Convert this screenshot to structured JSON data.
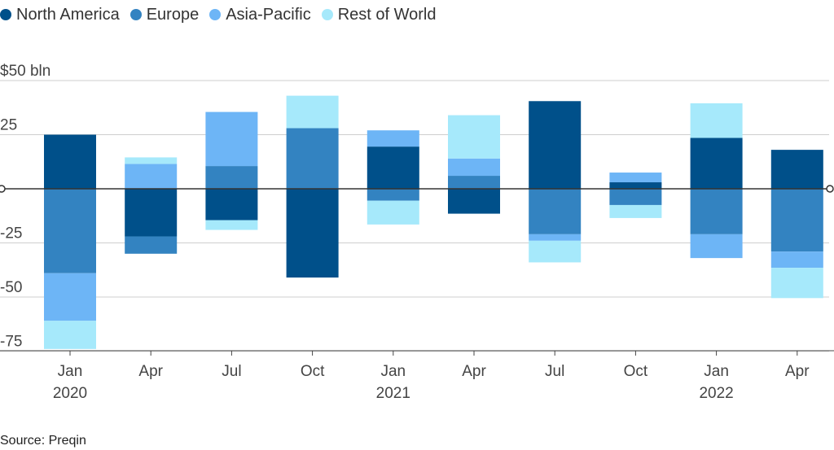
{
  "chart_data": {
    "type": "bar",
    "stacked": true,
    "categories": [
      "Jan 2020",
      "Apr",
      "Jul",
      "Oct",
      "Jan 2021",
      "Apr",
      "Jul",
      "Oct",
      "Jan 2022",
      "Apr"
    ],
    "tick_labels": [
      [
        "Jan",
        "2020"
      ],
      [
        "Apr"
      ],
      [
        "Jul"
      ],
      [
        "Oct"
      ],
      [
        "Jan",
        "2021"
      ],
      [
        "Apr"
      ],
      [
        "Jul"
      ],
      [
        "Oct"
      ],
      [
        "Jan",
        "2022"
      ],
      [
        "Apr"
      ]
    ],
    "series": [
      {
        "name": "North America",
        "color": "#00508a",
        "values": [
          25,
          -22,
          -14.5,
          -41,
          19.5,
          -11.5,
          40.5,
          3,
          23.5,
          18
        ]
      },
      {
        "name": "Europe",
        "color": "#3383c1",
        "values": [
          -39,
          -8,
          10.5,
          28,
          -5.5,
          6,
          -21,
          -7.5,
          -21,
          -29
        ]
      },
      {
        "name": "Asia-Pacific",
        "color": "#6db5f6",
        "values": [
          -22,
          11.5,
          25,
          0,
          7.5,
          8,
          -3,
          4.5,
          -11,
          -7.5
        ]
      },
      {
        "name": "Rest of World",
        "color": "#a6e9fb",
        "values": [
          -13,
          3,
          -4.5,
          15,
          -11,
          20,
          -10,
          -6,
          16,
          -14
        ]
      }
    ],
    "ylabel": "$50 bln",
    "y_ticks": [
      50,
      25,
      0,
      -25,
      -50,
      -75
    ],
    "y_tick_labels": [
      "$50 bln",
      "25",
      "",
      "-25",
      "-50",
      "-75"
    ],
    "ylim": [
      -75,
      50
    ],
    "grid": true,
    "legend_position": "top-left"
  },
  "source_label": "Source: Preqin"
}
